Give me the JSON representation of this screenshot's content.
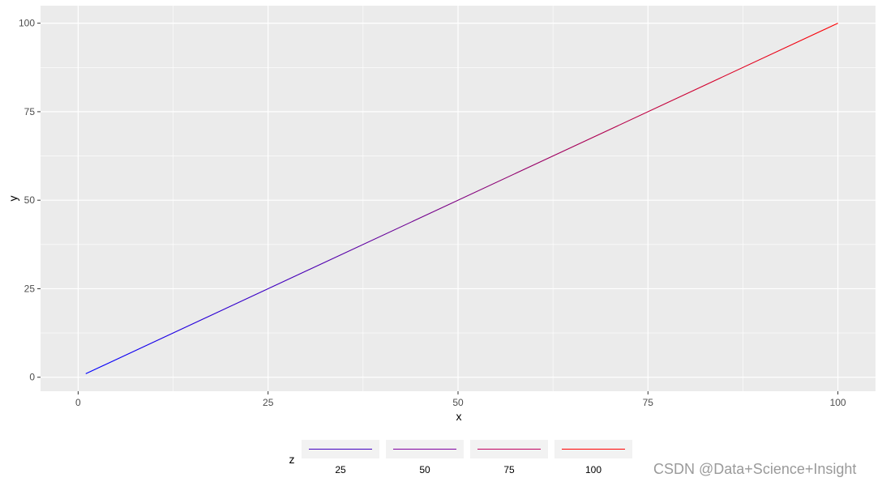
{
  "chart_data": {
    "type": "line",
    "xlabel": "x",
    "ylabel": "y",
    "xlim": [
      -4.95,
      104.95
    ],
    "ylim": [
      -3.95,
      104.95
    ],
    "x_ticks": [
      0,
      25,
      50,
      75,
      100
    ],
    "y_ticks": [
      0,
      25,
      50,
      75,
      100
    ],
    "grid": true,
    "color_scale": {
      "low": "#0000FF",
      "high": "#FF0000",
      "min": 1,
      "max": 100
    },
    "series": [
      {
        "x": [
          1,
          100
        ],
        "y": [
          1,
          100
        ]
      }
    ],
    "legend": {
      "title": "z",
      "position": "bottom",
      "items": [
        {
          "label": "25",
          "color": "#4000C0"
        },
        {
          "label": "50",
          "color": "#8000A0"
        },
        {
          "label": "75",
          "color": "#C00060"
        },
        {
          "label": "100",
          "color": "#FF0000"
        }
      ]
    }
  },
  "watermark": "CSDN @Data+Science+Insight"
}
